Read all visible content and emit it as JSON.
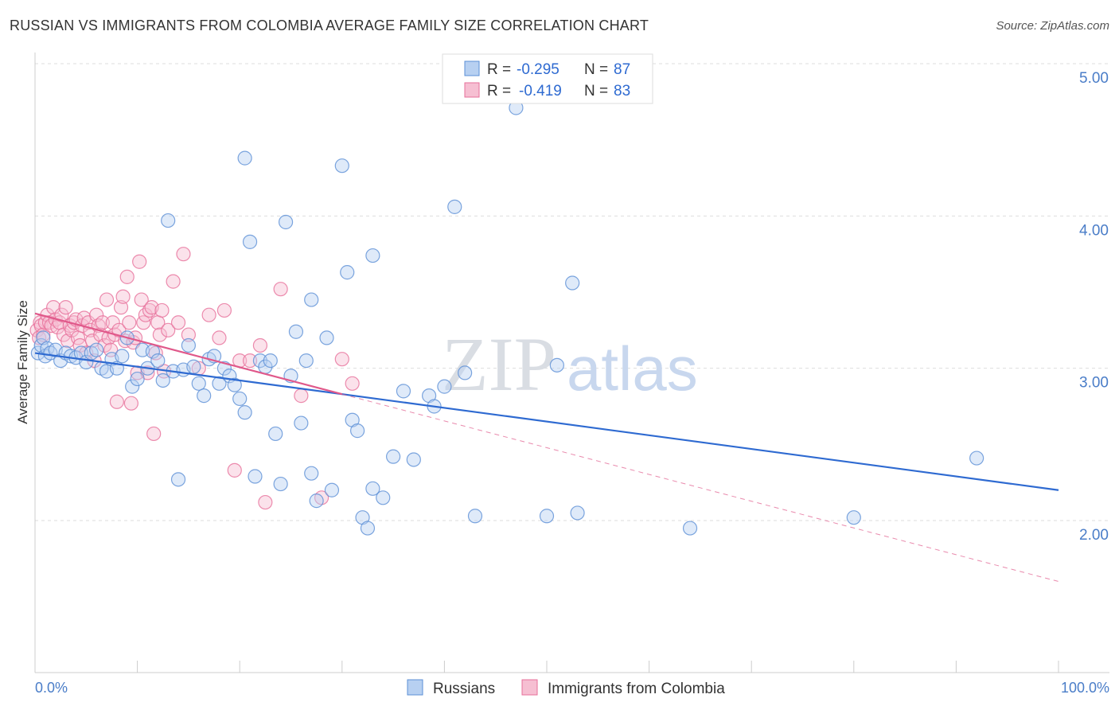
{
  "title": "RUSSIAN VS IMMIGRANTS FROM COLOMBIA AVERAGE FAMILY SIZE CORRELATION CHART",
  "source": "Source: ZipAtlas.com",
  "watermark": {
    "zip": "ZIP",
    "atlas": "atlas"
  },
  "legend_top": {
    "r_label": "R =",
    "n_label": "N =",
    "rows": [
      {
        "r": "-0.295",
        "n": "87"
      },
      {
        "r": "-0.419",
        "n": "83"
      }
    ]
  },
  "legend_bottom": [
    "Russians",
    "Immigrants from Colombia"
  ],
  "colors": {
    "blue": "#5b8fd6",
    "blue_fill": "#b7d0f1",
    "blue_line": "#2e6ad1",
    "pink": "#e76f9a",
    "pink_fill": "#f6bfd2",
    "pink_line": "#e0588a",
    "grid": "#dddddd",
    "tick": "#4a7dc8"
  },
  "chart_data": {
    "type": "scatter",
    "title": "RUSSIAN VS IMMIGRANTS FROM COLOMBIA AVERAGE FAMILY SIZE CORRELATION CHART",
    "xlabel": "",
    "ylabel": "Average Family Size",
    "xlim": [
      0,
      100
    ],
    "ylim": [
      1.0,
      5.15
    ],
    "x_tick_labels": [
      "0.0%",
      "100.0%"
    ],
    "y_ticks": [
      2.0,
      3.0,
      4.0,
      5.0
    ],
    "y_tick_labels": [
      "2.00",
      "3.00",
      "4.00",
      "5.00"
    ],
    "grid": true,
    "series": [
      {
        "name": "Russians",
        "r": -0.295,
        "n": 87,
        "trend": {
          "x": [
            0,
            100
          ],
          "y": [
            3.1,
            2.2
          ]
        },
        "points": [
          [
            0.3,
            3.1
          ],
          [
            0.6,
            3.15
          ],
          [
            0.8,
            3.2
          ],
          [
            1.0,
            3.08
          ],
          [
            1.2,
            3.13
          ],
          [
            1.5,
            3.1
          ],
          [
            2.0,
            3.12
          ],
          [
            2.5,
            3.05
          ],
          [
            3.0,
            3.1
          ],
          [
            3.5,
            3.08
          ],
          [
            4.0,
            3.07
          ],
          [
            4.5,
            3.1
          ],
          [
            5.0,
            3.04
          ],
          [
            5.5,
            3.1
          ],
          [
            6.0,
            3.12
          ],
          [
            6.5,
            3.0
          ],
          [
            7.0,
            2.98
          ],
          [
            7.5,
            3.06
          ],
          [
            8.0,
            3.0
          ],
          [
            8.5,
            3.08
          ],
          [
            9.0,
            3.2
          ],
          [
            9.5,
            2.88
          ],
          [
            10.0,
            2.93
          ],
          [
            10.5,
            3.12
          ],
          [
            11.0,
            3.0
          ],
          [
            11.5,
            3.11
          ],
          [
            12.0,
            3.05
          ],
          [
            12.5,
            2.92
          ],
          [
            13.0,
            3.97
          ],
          [
            13.5,
            2.98
          ],
          [
            14.0,
            2.27
          ],
          [
            14.5,
            2.99
          ],
          [
            15.0,
            3.15
          ],
          [
            15.5,
            3.01
          ],
          [
            16.0,
            2.9
          ],
          [
            16.5,
            2.82
          ],
          [
            17.0,
            3.06
          ],
          [
            17.5,
            3.08
          ],
          [
            18.0,
            2.9
          ],
          [
            18.5,
            3.0
          ],
          [
            19.0,
            2.95
          ],
          [
            19.5,
            2.89
          ],
          [
            20.0,
            2.8
          ],
          [
            20.5,
            2.71
          ],
          [
            20.5,
            4.38
          ],
          [
            21.0,
            3.83
          ],
          [
            21.5,
            2.29
          ],
          [
            22.0,
            3.05
          ],
          [
            22.5,
            3.01
          ],
          [
            23.0,
            3.05
          ],
          [
            23.5,
            2.57
          ],
          [
            24.0,
            2.24
          ],
          [
            24.5,
            3.96
          ],
          [
            25.0,
            2.95
          ],
          [
            25.5,
            3.24
          ],
          [
            26.0,
            2.64
          ],
          [
            26.5,
            3.05
          ],
          [
            27.0,
            3.45
          ],
          [
            27.0,
            2.31
          ],
          [
            27.5,
            2.13
          ],
          [
            28.5,
            3.2
          ],
          [
            29.0,
            2.2
          ],
          [
            30.0,
            4.33
          ],
          [
            30.5,
            3.63
          ],
          [
            31.0,
            2.66
          ],
          [
            31.5,
            2.59
          ],
          [
            32.0,
            2.02
          ],
          [
            32.5,
            1.95
          ],
          [
            33.0,
            3.74
          ],
          [
            33.0,
            2.21
          ],
          [
            34.0,
            2.15
          ],
          [
            35.0,
            2.42
          ],
          [
            36.0,
            2.85
          ],
          [
            37.0,
            2.4
          ],
          [
            38.5,
            2.82
          ],
          [
            39.0,
            2.75
          ],
          [
            40.0,
            2.88
          ],
          [
            41.0,
            4.06
          ],
          [
            42.0,
            2.97
          ],
          [
            43.0,
            2.03
          ],
          [
            47.0,
            4.71
          ],
          [
            50.0,
            2.03
          ],
          [
            51.0,
            3.02
          ],
          [
            52.5,
            3.56
          ],
          [
            53.0,
            2.05
          ],
          [
            64.0,
            1.95
          ],
          [
            80.0,
            2.02
          ],
          [
            92.0,
            2.41
          ]
        ]
      },
      {
        "name": "Immigrants from Colombia",
        "r": -0.419,
        "n": 83,
        "trend": {
          "x": [
            0,
            30
          ],
          "y": [
            3.36,
            2.83
          ]
        },
        "trend_dashed": {
          "x": [
            30,
            100
          ],
          "y": [
            2.83,
            1.6
          ]
        },
        "points": [
          [
            0.2,
            3.25
          ],
          [
            0.4,
            3.2
          ],
          [
            0.5,
            3.3
          ],
          [
            0.6,
            3.28
          ],
          [
            0.8,
            3.22
          ],
          [
            1.0,
            3.3
          ],
          [
            1.2,
            3.35
          ],
          [
            1.4,
            3.3
          ],
          [
            1.6,
            3.28
          ],
          [
            1.8,
            3.4
          ],
          [
            2.0,
            3.32
          ],
          [
            2.2,
            3.27
          ],
          [
            2.4,
            3.3
          ],
          [
            2.6,
            3.35
          ],
          [
            2.8,
            3.22
          ],
          [
            3.0,
            3.4
          ],
          [
            3.2,
            3.18
          ],
          [
            3.4,
            3.28
          ],
          [
            3.6,
            3.25
          ],
          [
            3.8,
            3.3
          ],
          [
            4.0,
            3.32
          ],
          [
            4.2,
            3.2
          ],
          [
            4.4,
            3.15
          ],
          [
            4.6,
            3.28
          ],
          [
            4.8,
            3.33
          ],
          [
            5.0,
            3.1
          ],
          [
            5.2,
            3.3
          ],
          [
            5.4,
            3.25
          ],
          [
            5.6,
            3.18
          ],
          [
            5.8,
            3.05
          ],
          [
            6.0,
            3.35
          ],
          [
            6.2,
            3.28
          ],
          [
            6.4,
            3.22
          ],
          [
            6.6,
            3.3
          ],
          [
            6.8,
            3.15
          ],
          [
            7.0,
            3.45
          ],
          [
            7.2,
            3.2
          ],
          [
            7.4,
            3.12
          ],
          [
            7.6,
            3.3
          ],
          [
            7.8,
            3.22
          ],
          [
            8.0,
            2.78
          ],
          [
            8.2,
            3.25
          ],
          [
            8.4,
            3.4
          ],
          [
            8.6,
            3.47
          ],
          [
            8.8,
            3.18
          ],
          [
            9.0,
            3.6
          ],
          [
            9.2,
            3.3
          ],
          [
            9.4,
            2.77
          ],
          [
            9.6,
            3.17
          ],
          [
            9.8,
            3.2
          ],
          [
            10.0,
            2.97
          ],
          [
            10.2,
            3.7
          ],
          [
            10.4,
            3.45
          ],
          [
            10.6,
            3.3
          ],
          [
            10.8,
            3.35
          ],
          [
            11.0,
            2.97
          ],
          [
            11.2,
            3.38
          ],
          [
            11.4,
            3.4
          ],
          [
            11.6,
            2.57
          ],
          [
            11.8,
            3.1
          ],
          [
            12.0,
            3.3
          ],
          [
            12.2,
            3.22
          ],
          [
            12.4,
            3.38
          ],
          [
            12.6,
            2.98
          ],
          [
            13.0,
            3.25
          ],
          [
            13.5,
            3.57
          ],
          [
            14.0,
            3.3
          ],
          [
            14.5,
            3.75
          ],
          [
            15.0,
            3.22
          ],
          [
            16.0,
            3.0
          ],
          [
            17.0,
            3.35
          ],
          [
            18.0,
            3.2
          ],
          [
            18.5,
            3.38
          ],
          [
            19.5,
            2.33
          ],
          [
            20.0,
            3.05
          ],
          [
            21.0,
            3.05
          ],
          [
            22.0,
            3.15
          ],
          [
            22.5,
            2.12
          ],
          [
            24.0,
            3.52
          ],
          [
            26.0,
            2.82
          ],
          [
            28.0,
            2.15
          ],
          [
            30.0,
            3.06
          ],
          [
            31.0,
            2.9
          ]
        ]
      }
    ]
  }
}
